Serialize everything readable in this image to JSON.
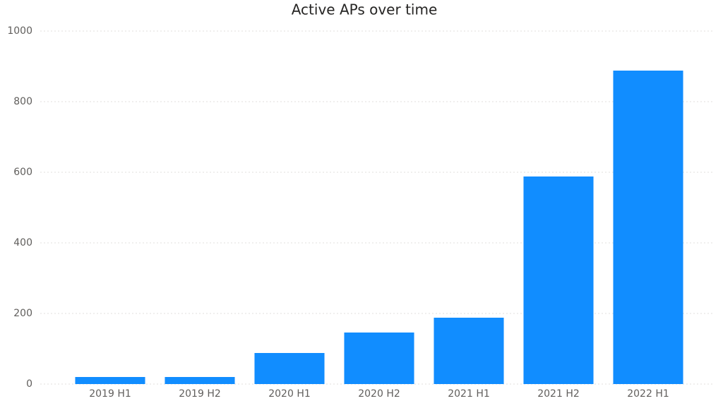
{
  "chart_data": {
    "type": "bar",
    "title": "Active APs over time",
    "categories": [
      "2019 H1",
      "2019 H2",
      "2020 H1",
      "2020 H2",
      "2021 H1",
      "2021 H2",
      "2022 H1"
    ],
    "values": [
      20,
      20,
      88,
      146,
      188,
      588,
      888
    ],
    "color": "#118dff",
    "ylim": [
      0,
      1000
    ],
    "yticks": [
      0,
      200,
      400,
      600,
      800,
      1000
    ],
    "grid": true
  }
}
